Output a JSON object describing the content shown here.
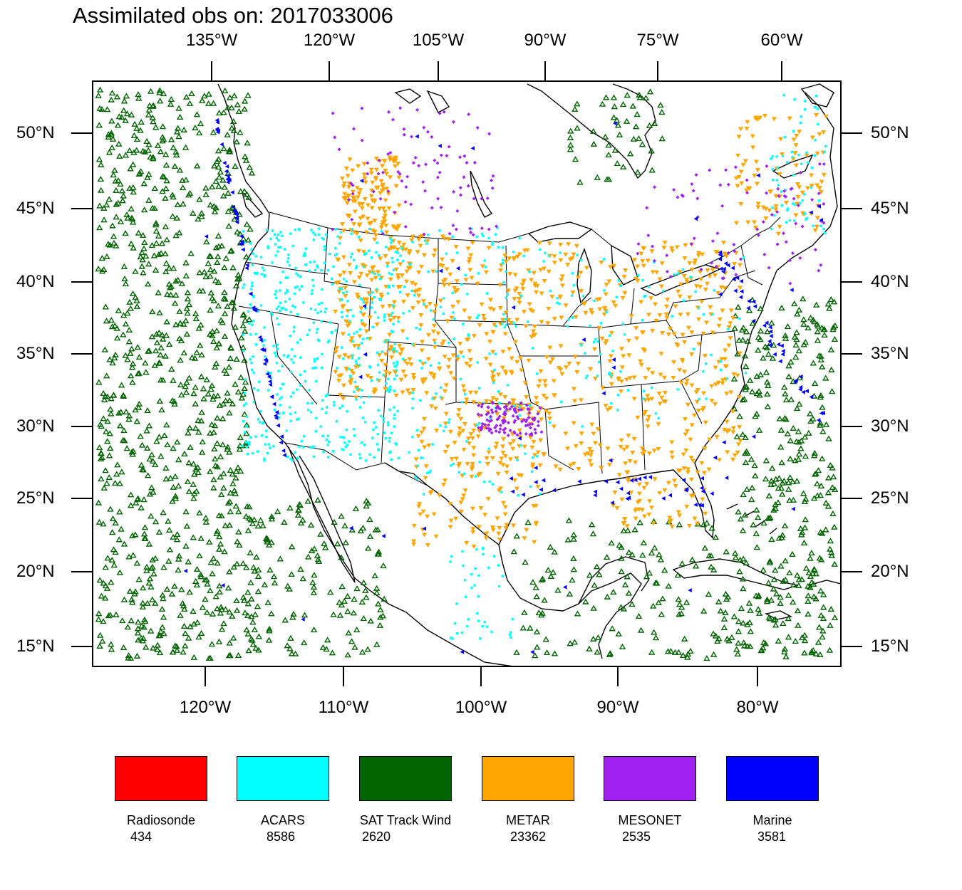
{
  "title": "Assimilated obs on: 2017033006",
  "top_axis_labels": [
    "135°W",
    "120°W",
    "105°W",
    "90°W",
    "75°W",
    "60°W"
  ],
  "bottom_axis_labels": [
    "120°W",
    "110°W",
    "100°W",
    "90°W",
    "80°W"
  ],
  "lat_labels": [
    "50°N",
    "45°N",
    "40°N",
    "35°N",
    "30°N",
    "25°N",
    "20°N",
    "15°N"
  ],
  "legend": [
    {
      "name": "Radiosonde",
      "count": "434",
      "color": "#ff0000",
      "marker": "square"
    },
    {
      "name": "ACARS",
      "count": "8586",
      "color": "#00ffff",
      "marker": "square"
    },
    {
      "name": "SAT Track Wind",
      "count": "2620",
      "color": "#006400",
      "marker": "triangle-up"
    },
    {
      "name": "METAR",
      "count": "23362",
      "color": "#ffa500",
      "marker": "triangle-down"
    },
    {
      "name": "MESONET",
      "count": "2535",
      "color": "#a020f0",
      "marker": "diamond"
    },
    {
      "name": "Marine",
      "count": "3581",
      "color": "#0000ff",
      "marker": "triangle-left"
    }
  ]
}
